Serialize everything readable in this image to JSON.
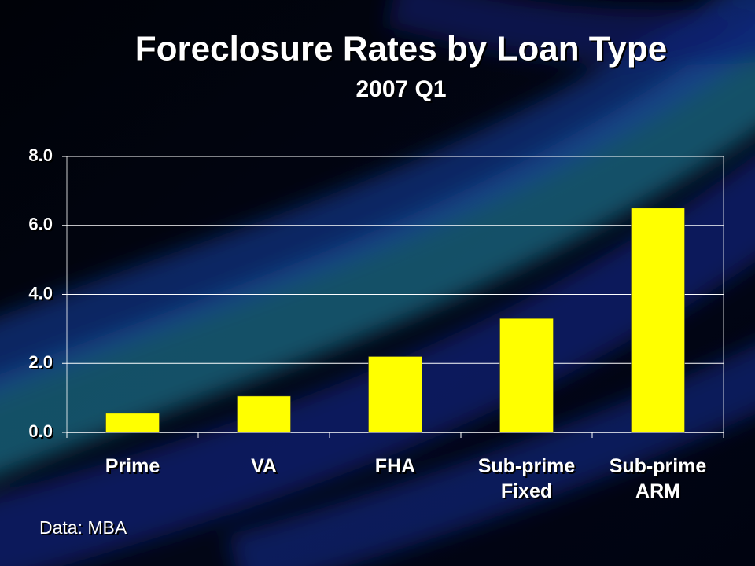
{
  "chart_data": {
    "type": "bar",
    "title": "Foreclosure Rates by Loan Type",
    "subtitle": "2007 Q1",
    "source": "Data: MBA",
    "categories": [
      "Prime",
      "VA",
      "FHA",
      "Sub-prime Fixed",
      "Sub-prime ARM"
    ],
    "values": [
      0.55,
      1.05,
      2.2,
      3.3,
      6.5
    ],
    "color": "#ffff00",
    "ylim": [
      0,
      8
    ],
    "yticks": [
      {
        "value": 0,
        "label": "0.0"
      },
      {
        "value": 2,
        "label": "2.0"
      },
      {
        "value": 4,
        "label": "4.0"
      },
      {
        "value": 6,
        "label": "6.0"
      },
      {
        "value": 8,
        "label": "8.0"
      }
    ],
    "grid": true
  }
}
